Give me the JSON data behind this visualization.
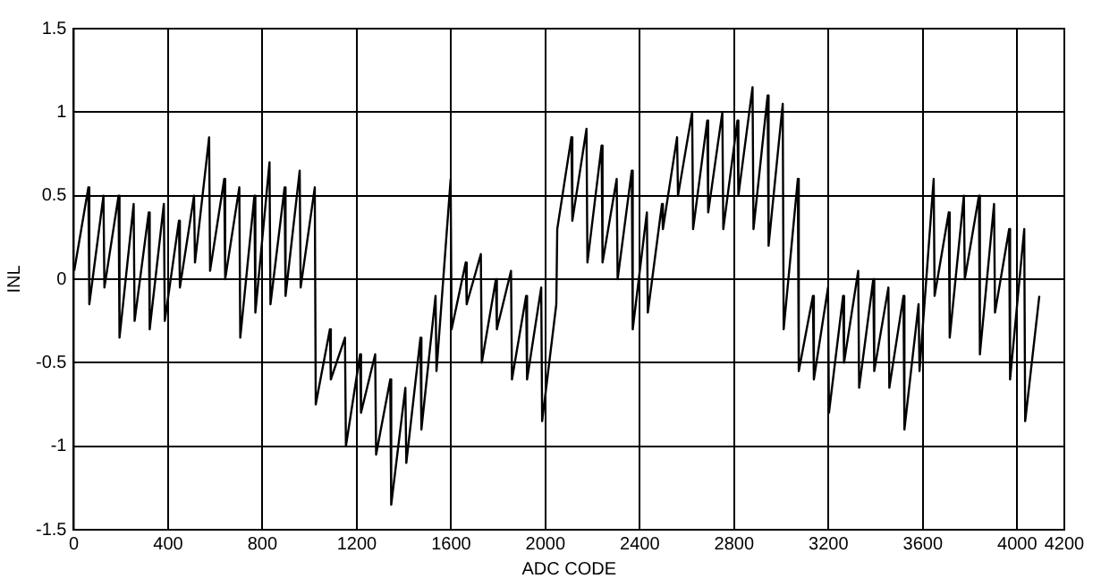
{
  "chart_data": {
    "type": "line",
    "xlabel": "ADC CODE",
    "ylabel": "INL",
    "xlim": [
      0,
      4200
    ],
    "xticks": [
      0,
      400,
      800,
      1200,
      1600,
      2000,
      2400,
      2800,
      3200,
      3600,
      4000,
      4200
    ],
    "ylim": [
      -1.5,
      1.5
    ],
    "yticks": [
      -1.5,
      -1,
      -0.5,
      0,
      0.5,
      1,
      1.5
    ],
    "grid": true,
    "legend": false,
    "marker": "none",
    "line_style": "solid",
    "x": [
      2,
      62,
      66,
      126,
      130,
      190,
      194,
      254,
      258,
      318,
      322,
      382,
      386,
      446,
      450,
      510,
      514,
      574,
      578,
      638,
      642,
      702,
      706,
      766,
      770,
      830,
      834,
      894,
      898,
      958,
      962,
      1022,
      1026,
      1086,
      1090,
      1150,
      1154,
      1214,
      1218,
      1278,
      1282,
      1342,
      1346,
      1406,
      1410,
      1470,
      1474,
      1534,
      1538,
      1598,
      1602,
      1662,
      1666,
      1726,
      1730,
      1790,
      1794,
      1854,
      1858,
      1918,
      1922,
      1982,
      1986,
      2046,
      2050,
      2110,
      2114,
      2174,
      2178,
      2238,
      2242,
      2302,
      2306,
      2366,
      2370,
      2430,
      2434,
      2494,
      2498,
      2558,
      2562,
      2622,
      2626,
      2686,
      2690,
      2750,
      2754,
      2814,
      2818,
      2878,
      2882,
      2942,
      2946,
      3006,
      3010,
      3070,
      3074,
      3134,
      3138,
      3198,
      3202,
      3262,
      3266,
      3326,
      3330,
      3390,
      3394,
      3454,
      3458,
      3518,
      3522,
      3582,
      3586,
      3646,
      3650,
      3710,
      3714,
      3774,
      3778,
      3838,
      3842,
      3902,
      3906,
      3966,
      3970,
      4030,
      4034,
      4094
    ],
    "series": [
      {
        "color": "#000000",
        "values": [
          0.05,
          0.55,
          -0.15,
          0.5,
          -0.05,
          0.5,
          -0.35,
          0.45,
          -0.25,
          0.4,
          -0.3,
          0.45,
          -0.25,
          0.35,
          -0.05,
          0.5,
          0.1,
          0.85,
          0.05,
          0.6,
          0.0,
          0.55,
          -0.35,
          0.5,
          -0.2,
          0.7,
          -0.15,
          0.55,
          -0.1,
          0.65,
          -0.05,
          0.55,
          -0.75,
          -0.3,
          -0.6,
          -0.35,
          -1.0,
          -0.45,
          -0.8,
          -0.45,
          -1.05,
          -0.6,
          -1.35,
          -0.65,
          -1.1,
          -0.35,
          -0.9,
          -0.1,
          -0.55,
          0.6,
          -0.3,
          0.1,
          -0.15,
          0.15,
          -0.5,
          0.0,
          -0.3,
          0.05,
          -0.6,
          -0.1,
          -0.6,
          -0.05,
          -0.85,
          -0.15,
          0.3,
          0.85,
          0.35,
          0.9,
          0.1,
          0.8,
          0.1,
          0.6,
          0.0,
          0.65,
          -0.3,
          0.4,
          -0.2,
          0.45,
          0.3,
          0.85,
          0.5,
          1.0,
          0.3,
          0.95,
          0.4,
          1.0,
          0.3,
          0.95,
          0.5,
          1.15,
          0.3,
          1.1,
          0.2,
          1.05,
          -0.3,
          0.6,
          -0.55,
          -0.1,
          -0.6,
          -0.05,
          -0.8,
          -0.1,
          -0.5,
          0.05,
          -0.65,
          0.0,
          -0.55,
          -0.05,
          -0.65,
          -0.1,
          -0.9,
          -0.15,
          -0.55,
          0.6,
          -0.1,
          0.4,
          -0.35,
          0.5,
          0.0,
          0.5,
          -0.45,
          0.45,
          -0.2,
          0.3,
          -0.6,
          0.3,
          -0.85,
          -0.1
        ]
      }
    ]
  }
}
